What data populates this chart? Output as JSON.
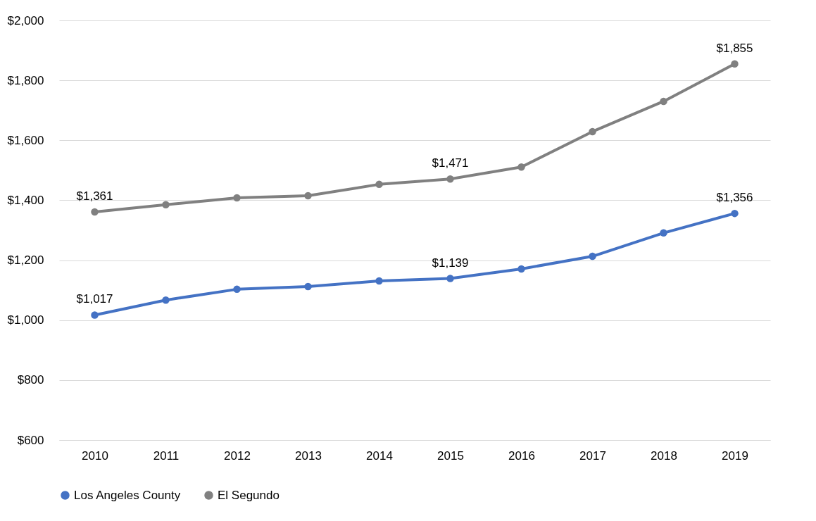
{
  "chart_data": {
    "type": "line",
    "categories": [
      "2010",
      "2011",
      "2012",
      "2013",
      "2014",
      "2015",
      "2016",
      "2017",
      "2018",
      "2019"
    ],
    "series": [
      {
        "name": "Los Angeles County",
        "color": "#4472c4",
        "values": [
          1017,
          1067,
          1103,
          1112,
          1131,
          1139,
          1171,
          1213,
          1291,
          1356
        ],
        "value_labels": [
          "$1,017",
          null,
          null,
          null,
          null,
          "$1,139",
          null,
          null,
          null,
          "$1,356"
        ]
      },
      {
        "name": "El Segundo",
        "color": "#808080",
        "values": [
          1361,
          1385,
          1408,
          1415,
          1453,
          1471,
          1511,
          1629,
          1730,
          1855
        ],
        "value_labels": [
          "$1,361",
          null,
          null,
          null,
          null,
          "$1,471",
          null,
          null,
          null,
          "$1,855"
        ]
      }
    ],
    "ylim": [
      600,
      2000
    ],
    "yticks": [
      {
        "value": 600,
        "label": "$600"
      },
      {
        "value": 800,
        "label": "$800"
      },
      {
        "value": 1000,
        "label": "$1,000"
      },
      {
        "value": 1200,
        "label": "$1,200"
      },
      {
        "value": 1400,
        "label": "$1,400"
      },
      {
        "value": 1600,
        "label": "$1,600"
      },
      {
        "value": 1800,
        "label": "$1,800"
      },
      {
        "value": 2000,
        "label": "$2,000"
      }
    ],
    "grid": "y",
    "legend": "bottom",
    "marker": "circle",
    "line_style": "solid"
  }
}
